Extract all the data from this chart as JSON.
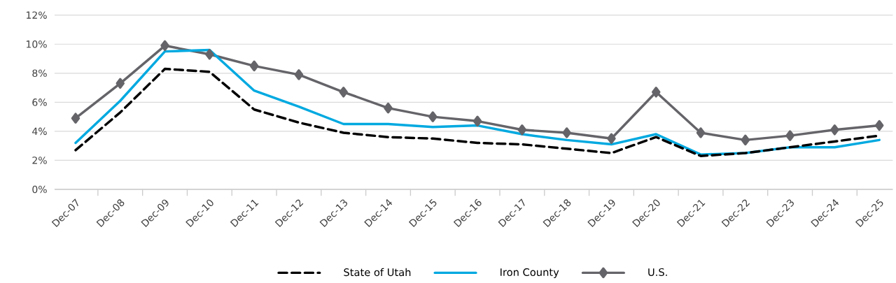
{
  "chart_data": {
    "type": "line",
    "categories": [
      "Dec-07",
      "Dec-08",
      "Dec-09",
      "Dec-10",
      "Dec-11",
      "Dec-12",
      "Dec-13",
      "Dec-14",
      "Dec-15",
      "Dec-16",
      "Dec-17",
      "Dec-18",
      "Dec-19",
      "Dec-20",
      "Dec-21",
      "Dec-22",
      "Dec-23",
      "Dec-24",
      "Dec-25"
    ],
    "series": [
      {
        "name": "State of Utah",
        "color": "#000000",
        "line_style": "dashed",
        "marker": "none",
        "values": [
          2.7,
          5.3,
          8.3,
          8.1,
          5.5,
          4.6,
          3.9,
          3.6,
          3.5,
          3.2,
          3.1,
          2.8,
          2.5,
          3.6,
          2.3,
          2.5,
          2.9,
          3.3,
          3.7
        ]
      },
      {
        "name": "Iron County",
        "color": "#00a9e0",
        "line_style": "solid",
        "marker": "none",
        "values": [
          3.2,
          6.1,
          9.5,
          9.6,
          6.8,
          5.7,
          4.5,
          4.5,
          4.3,
          4.4,
          3.8,
          3.4,
          3.1,
          3.8,
          2.4,
          2.5,
          2.9,
          2.9,
          3.4
        ]
      },
      {
        "name": "U.S.",
        "color": "#646469",
        "line_style": "solid",
        "marker": "diamond",
        "values": [
          4.9,
          7.3,
          9.9,
          9.3,
          8.5,
          7.9,
          6.7,
          5.6,
          5.0,
          4.7,
          4.1,
          3.9,
          3.5,
          6.7,
          3.9,
          3.4,
          3.7,
          4.1,
          4.4
        ]
      }
    ],
    "ylim": [
      0,
      12
    ],
    "yticks": [
      {
        "value": 0,
        "label": "0%"
      },
      {
        "value": 2,
        "label": "2%"
      },
      {
        "value": 4,
        "label": "4%"
      },
      {
        "value": 6,
        "label": "6%"
      },
      {
        "value": 8,
        "label": "8%"
      },
      {
        "value": 10,
        "label": "10%"
      },
      {
        "value": 12,
        "label": "12%"
      }
    ],
    "grid": "y",
    "legend": "bottom"
  }
}
